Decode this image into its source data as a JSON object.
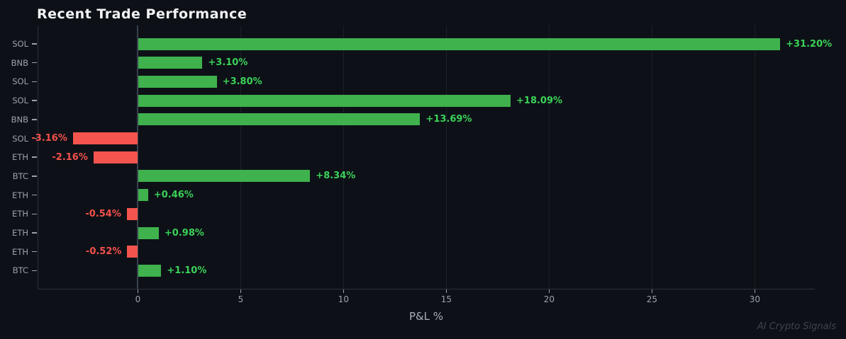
{
  "header": {
    "title": "Recent Trade Performance"
  },
  "footer": {
    "watermark": "AI Crypto Signals"
  },
  "chart_data": {
    "type": "bar",
    "orientation": "horizontal",
    "title": "Recent Trade Performance",
    "xlabel": "P&L %",
    "ylabel": "",
    "categories": [
      "SOL",
      "BNB",
      "SOL",
      "SOL",
      "BNB",
      "SOL",
      "ETH",
      "BTC",
      "ETH",
      "ETH",
      "ETH",
      "ETH",
      "BTC"
    ],
    "values": [
      31.2,
      3.1,
      3.8,
      18.09,
      13.69,
      -3.16,
      -2.16,
      8.34,
      0.46,
      -0.54,
      0.98,
      -0.52,
      1.1
    ],
    "value_labels": [
      "+31.20%",
      "+3.10%",
      "+3.80%",
      "+18.09%",
      "+13.69%",
      "-3.16%",
      "-2.16%",
      "+8.34%",
      "+0.46%",
      "-0.54%",
      "+0.98%",
      "-0.52%",
      "+1.10%"
    ],
    "x_ticks": [
      0,
      5,
      10,
      15,
      20,
      25,
      30
    ],
    "xlim": [
      -4.88,
      32.92
    ],
    "grid": true,
    "zero_line": true,
    "legend": "none",
    "colors": {
      "background": "#0d1117",
      "bar_positive": "#3fb24d",
      "bar_negative": "#f4544e",
      "label_positive": "#3bd158",
      "label_negative": "#f4504c",
      "grid": "#1b2029",
      "zero_line": "#3a4150",
      "spine": "#2a303b",
      "tick_label": "#9ba1ab",
      "title": "#f2f3f5",
      "axis_label": "#a9afb9",
      "watermark": "#3d434e"
    }
  }
}
